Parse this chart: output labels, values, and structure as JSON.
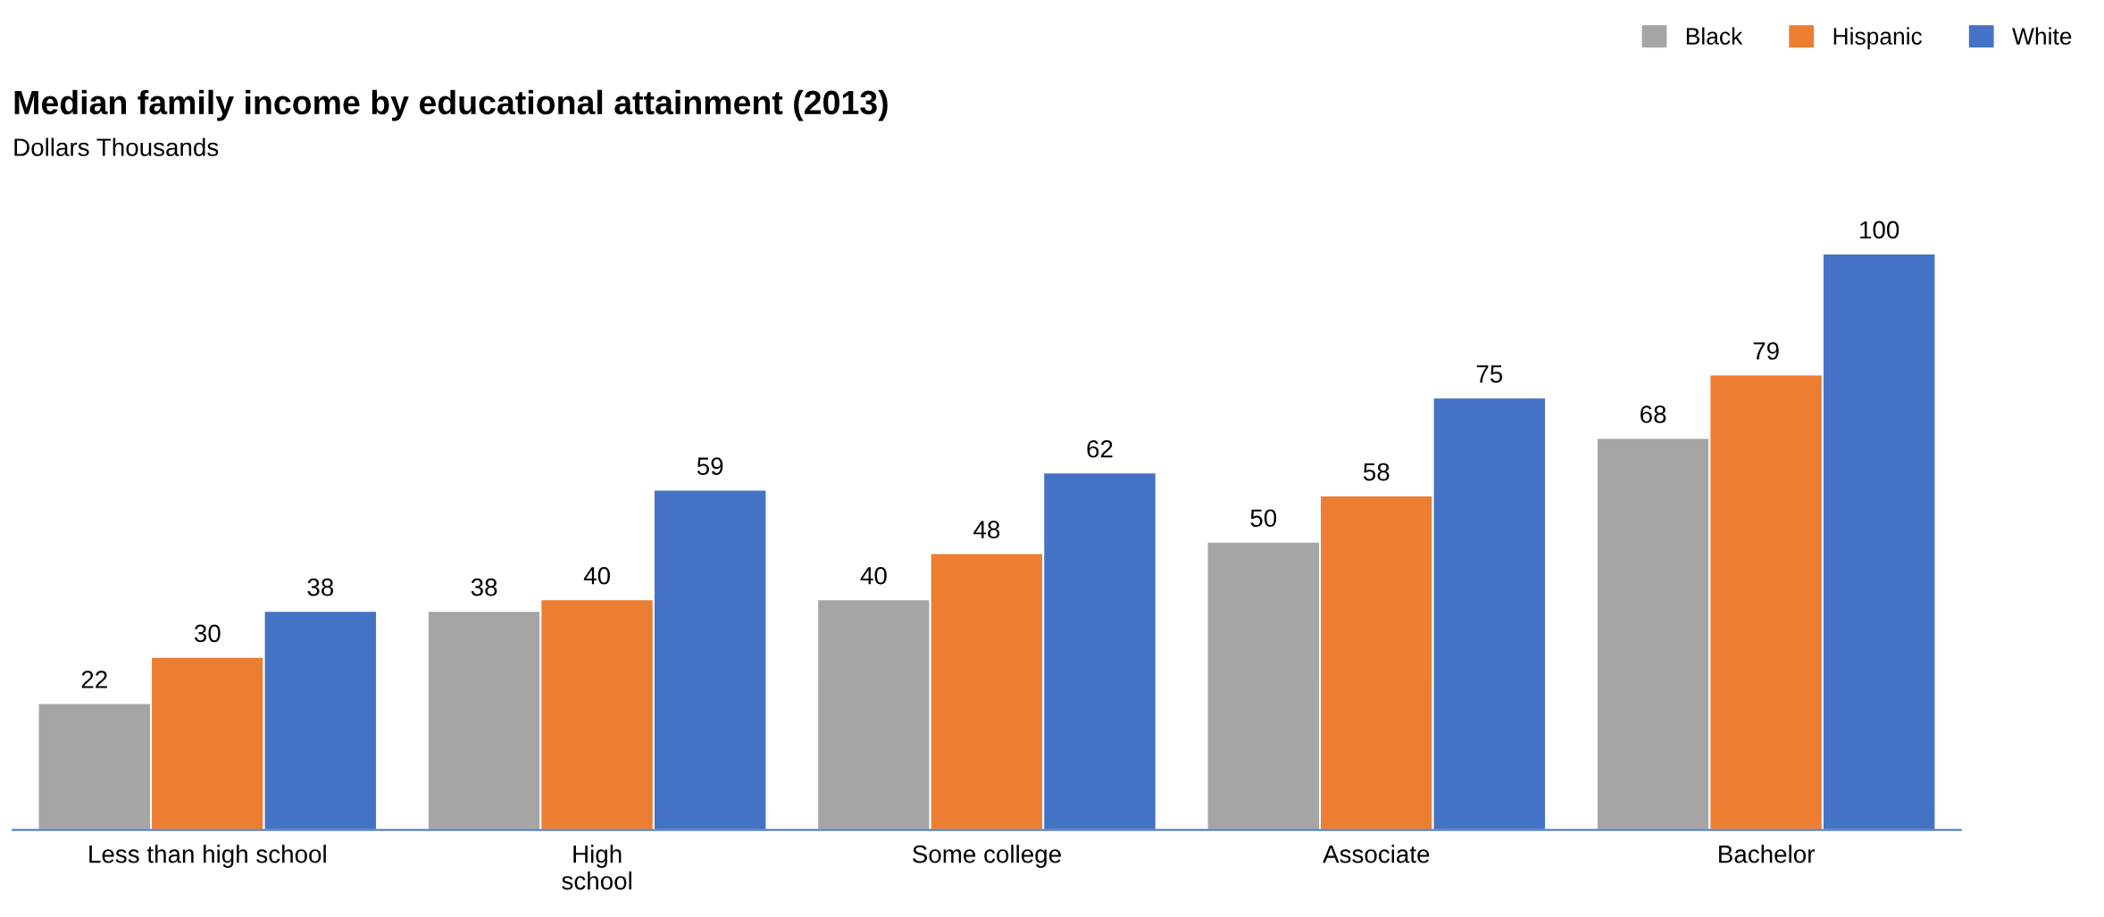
{
  "chart_data": {
    "type": "bar",
    "title": "Median family income by educational attainment (2013)",
    "subtitle": "Dollars Thousands",
    "categories": [
      "Less than high school",
      "High\nschool",
      "Some college",
      "Associate",
      "Bachelor"
    ],
    "series": [
      {
        "name": "Black",
        "color": "#a5a5a5",
        "values": [
          22,
          38,
          40,
          50,
          68
        ]
      },
      {
        "name": "Hispanic",
        "color": "#ed7d31",
        "values": [
          30,
          40,
          48,
          58,
          79
        ]
      },
      {
        "name": "White",
        "color": "#4472c4",
        "values": [
          38,
          59,
          62,
          75,
          100
        ]
      }
    ],
    "data_labels": true,
    "legend": "top right",
    "grid": false
  }
}
